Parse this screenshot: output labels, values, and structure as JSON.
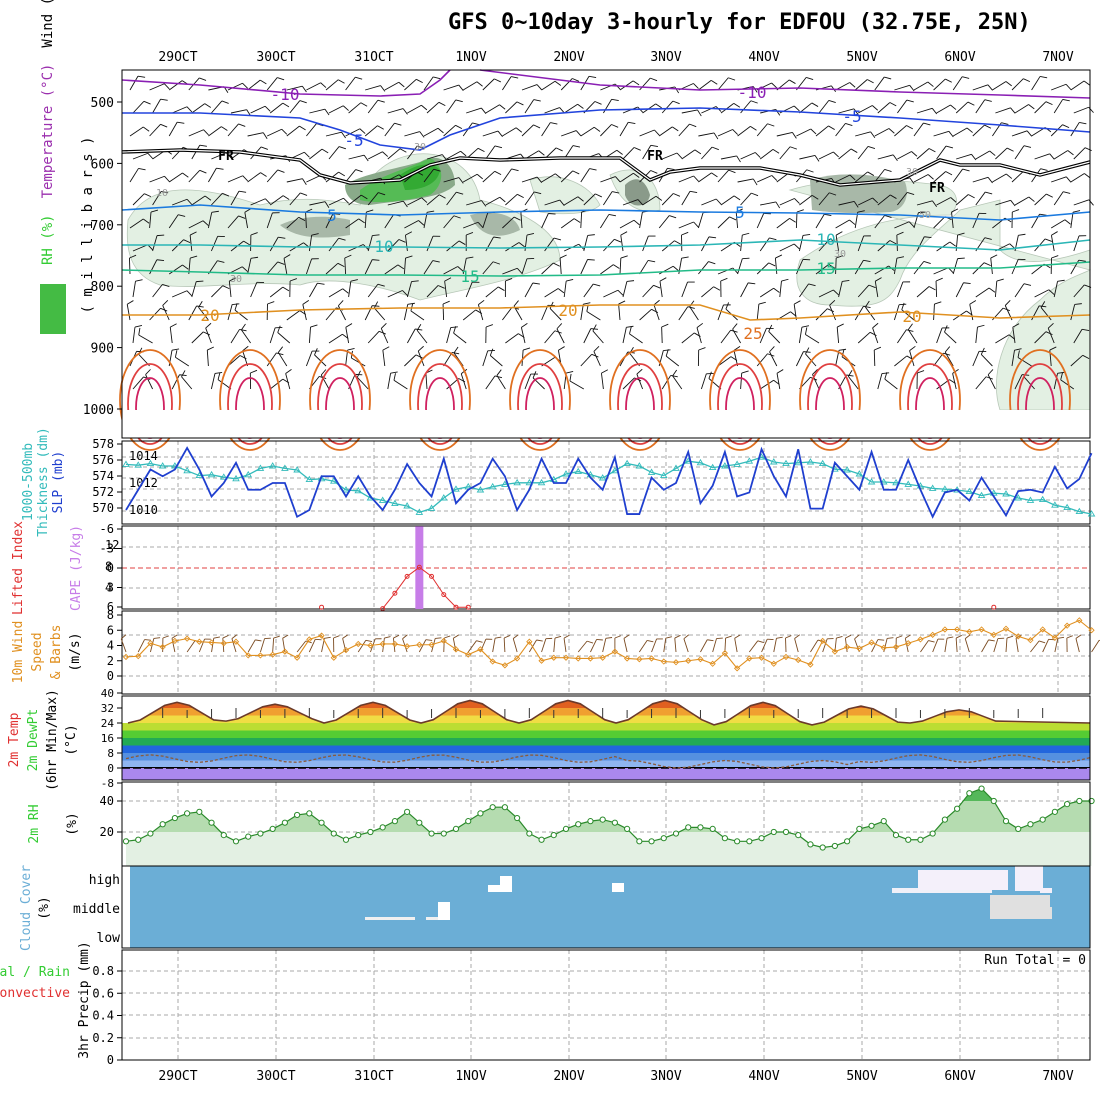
{
  "title": "GFS 0~10day 3-hourly for EDFOU (32.75E, 25N)",
  "colors": {
    "temperature": "#9b2fae",
    "rh": "#33cc33",
    "slp": "#1f3fcf",
    "thickness": "#33bbbb",
    "lifted": "#e03030",
    "cape": "#c77de8",
    "wind10m": "#e09020",
    "cloud": "#6baed6",
    "precip_total": "#33cc33",
    "precip_conv": "#e03030"
  },
  "chart_data": [
    {
      "type": "contour",
      "panel": "upper-air",
      "ylabel_parts": [
        "RH (%)",
        "Temperature (°C)",
        "Wind (m/s)"
      ],
      "ylabel_unit": "(millibars)",
      "yticks": [
        500,
        600,
        700,
        800,
        900,
        1000
      ],
      "ylim": [
        450,
        1000
      ],
      "date_labels": [
        "29OCT",
        "30OCT",
        "31OCT",
        "1NOV",
        "2NOV",
        "3NOV",
        "4NOV",
        "5NOV",
        "6NOV",
        "7NOV"
      ],
      "temperature_labels": [
        "-10",
        "-10",
        "-5",
        "-5",
        "5",
        "5",
        "10",
        "10",
        "15",
        "15",
        "20",
        "20",
        "20",
        "25"
      ],
      "freezing_label": "FR",
      "rh_labels": [
        "30",
        "10",
        "30",
        "30",
        "50",
        "30"
      ]
    },
    {
      "type": "line",
      "panel": "slp-thickness",
      "left_ylabel": "1000-500mb Thickness (dm)",
      "right_ylabel": "SLP (mb)",
      "left_ticks": [
        570,
        572,
        574,
        576,
        578
      ],
      "right_ticks": [
        1010,
        1012,
        1014
      ],
      "series": [
        {
          "name": "SLP (mb)",
          "values": [
            1010,
            1011.5,
            1013,
            1012.5,
            1013,
            1014.6,
            1013,
            1011,
            1012,
            1013.5,
            1011.5,
            1011.5,
            1012,
            1012,
            1009.5,
            1010,
            1012.5,
            1012.5,
            1011,
            1012.5,
            1011,
            1010,
            1011.5,
            1013.4,
            1012,
            1011,
            1013.8,
            1010.5,
            1011.5,
            1012,
            1013.8,
            1012.5,
            1010,
            1011.5,
            1013.8,
            1012,
            1012,
            1013.8,
            1012.4,
            1011.5,
            1013.9,
            1009.7,
            1009.7,
            1012.4,
            1011.5,
            1012,
            1014.3,
            1010.5,
            1011.8,
            1014.3,
            1011,
            1011.3,
            1014.5,
            1012.5,
            1011,
            1014.5,
            1010.1,
            1010.1,
            1013.5,
            1012.5,
            1011.5,
            1014.3,
            1011.5,
            1011.5,
            1013.7,
            1011.5,
            1009.5,
            1011.3,
            1011.5,
            1010.7,
            1012.4,
            1011,
            1009.6,
            1011.4,
            1011.5,
            1011.3,
            1013.2,
            1011.6,
            1012.3,
            1014.2
          ]
        },
        {
          "name": "1000-500mb Thickness (dm)",
          "values": [
            575.7,
            575.6,
            575.8,
            575.5,
            575.5,
            574.9,
            574.3,
            574.4,
            574.1,
            573.9,
            574.4,
            575.2,
            575.5,
            575.2,
            575.0,
            573.8,
            573.9,
            573.6,
            572.5,
            572.4,
            571.5,
            571.2,
            570.8,
            570.5,
            569.7,
            570.2,
            571.5,
            572.6,
            572.9,
            572.5,
            572.9,
            573.2,
            573.4,
            573.4,
            573.4,
            573.8,
            574.5,
            574.8,
            574.4,
            574.0,
            574.9,
            575.8,
            575.5,
            574.7,
            574.3,
            575.2,
            576.1,
            575.9,
            575.3,
            575.5,
            575.7,
            576.1,
            576.6,
            576.0,
            575.8,
            575.9,
            576.0,
            575.8,
            575.1,
            575.0,
            574.5,
            573.5,
            573.5,
            573.4,
            573.2,
            573.0,
            572.7,
            572.6,
            572.5,
            572.3,
            571.8,
            572.1,
            572.0,
            571.5,
            571.2,
            571.3,
            570.6,
            570.3,
            569.8,
            569.5
          ]
        }
      ]
    },
    {
      "type": "bar+line",
      "panel": "lifted-cape",
      "left_ylabel": "Lifted Index",
      "right_ylabel": "CAPE (J/kg)",
      "left_ticks": [
        "-6",
        "-3",
        "0",
        "3",
        "6"
      ],
      "right_ticks": [
        4,
        8,
        12
      ],
      "lifted_index": [
        {
          "x": 16,
          "v": 5.6
        },
        {
          "x": 21,
          "v": 5.8
        },
        {
          "x": 22,
          "v": 3.6
        },
        {
          "x": 23,
          "v": 1.2
        },
        {
          "x": 24,
          "v": -0.1
        },
        {
          "x": 25,
          "v": 1.2
        },
        {
          "x": 26,
          "v": 3.8
        },
        {
          "x": 27,
          "v": 5.6
        },
        {
          "x": 28,
          "v": 5.6
        },
        {
          "x": 71,
          "v": 5.6
        }
      ],
      "cape_bars": [
        {
          "x": 24,
          "v": 15.5
        }
      ]
    },
    {
      "type": "line",
      "panel": "wind10m",
      "ylabel_parts": [
        "10m Wind",
        "Speed",
        "& Barbs",
        "(m/s)"
      ],
      "yticks": [
        0,
        2,
        4,
        6,
        8
      ],
      "values": [
        2.5,
        2.6,
        4.3,
        3.8,
        4.6,
        4.9,
        4.5,
        4.4,
        4.3,
        4.5,
        2.7,
        2.7,
        2.8,
        3.2,
        2.4,
        4.8,
        5.3,
        2.4,
        3.4,
        4.2,
        4.0,
        4.2,
        4.2,
        3.9,
        4.1,
        4.1,
        4.6,
        3.5,
        2.8,
        3.5,
        1.9,
        1.4,
        2.3,
        4.5,
        2.0,
        2.4,
        2.4,
        2.3,
        2.3,
        2.4,
        3.2,
        2.3,
        2.2,
        2.3,
        1.9,
        1.8,
        2.0,
        2.2,
        1.6,
        3.0,
        1.0,
        2.3,
        2.4,
        1.6,
        2.5,
        2.1,
        1.5,
        4.6,
        3.2,
        3.8,
        3.6,
        4.4,
        3.7,
        3.8,
        4.3,
        4.8,
        5.4,
        6.1,
        6.1,
        5.8,
        6.1,
        5.4,
        6.2,
        5.2,
        4.7,
        6.1,
        5.0,
        6.6,
        7.3,
        6.0
      ]
    },
    {
      "type": "area+line",
      "panel": "temperature",
      "ylabel_parts": [
        "2m Temp",
        "2m DewPt",
        "(6hr Min/Max)",
        "(°C)"
      ],
      "yticks": [
        -8,
        0,
        8,
        16,
        24,
        32,
        40
      ],
      "temp_min": [
        24,
        25,
        24,
        24,
        24,
        24,
        23,
        23,
        24
      ],
      "temp_max": [
        35,
        34,
        35,
        36,
        36,
        36,
        35,
        33,
        31
      ],
      "dewpoint": [
        6,
        6,
        6,
        6,
        6,
        6,
        6,
        7,
        8
      ]
    },
    {
      "type": "area",
      "panel": "rh2m",
      "ylabel": "2m RH",
      "yunit": "(%)",
      "yticks": [
        20,
        40
      ],
      "values": [
        14,
        15,
        19,
        25,
        29,
        32,
        33,
        26,
        18,
        14,
        17,
        19,
        22,
        26,
        31,
        32,
        26,
        19,
        15,
        18,
        20,
        23,
        27,
        33,
        26,
        19,
        19,
        22,
        27,
        32,
        36,
        36,
        29,
        19,
        15,
        18,
        22,
        25,
        27,
        28,
        26,
        22,
        14,
        14,
        16,
        19,
        23,
        23,
        22,
        16,
        14,
        14,
        16,
        20,
        20,
        18,
        12,
        10,
        11,
        14,
        22,
        24,
        27,
        18,
        15,
        15,
        19,
        28,
        35,
        45,
        48,
        40,
        27,
        22,
        25,
        28,
        33,
        38,
        40,
        40
      ]
    },
    {
      "type": "heatmap",
      "panel": "cloud",
      "ylabel_parts": [
        "Cloud Cover",
        "(%)"
      ],
      "levels": [
        "high",
        "middle",
        "low"
      ]
    },
    {
      "type": "bar",
      "panel": "precip",
      "ylabel_parts": [
        "Total / Rain",
        "Convective",
        "3hr Precip (mm)"
      ],
      "yticks": [
        "0",
        "0.2",
        "0.4",
        "0.6",
        "0.8"
      ],
      "run_total": "Run Total = 0"
    }
  ]
}
